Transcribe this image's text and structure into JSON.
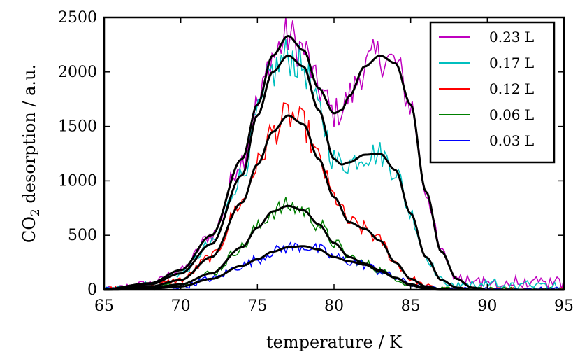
{
  "chart_data": {
    "type": "line",
    "title": "",
    "xlabel": "temperature / K",
    "ylabel_main": "CO",
    "ylabel_sub": "2",
    "ylabel_rest": " desorption / a.u.",
    "xlim": [
      65,
      95
    ],
    "ylim": [
      0,
      2500
    ],
    "x_ticks": [
      "65",
      "70",
      "75",
      "80",
      "85",
      "90",
      "95"
    ],
    "y_ticks": [
      "0",
      "500",
      "1000",
      "1500",
      "2000",
      "2500"
    ],
    "grid": false,
    "legend_position": "top-right",
    "series": [
      {
        "name": "0.23 L",
        "color": "#bf00bf",
        "fit": [
          [
            65,
            5
          ],
          [
            68,
            60
          ],
          [
            70,
            180
          ],
          [
            72,
            500
          ],
          [
            74,
            1200
          ],
          [
            75,
            1700
          ],
          [
            76,
            2150
          ],
          [
            77,
            2330
          ],
          [
            78,
            2200
          ],
          [
            79,
            1850
          ],
          [
            80,
            1620
          ],
          [
            80.5,
            1650
          ],
          [
            81,
            1780
          ],
          [
            82,
            2050
          ],
          [
            83,
            2150
          ],
          [
            84,
            2080
          ],
          [
            85,
            1700
          ],
          [
            86,
            900
          ],
          [
            87,
            350
          ],
          [
            88,
            100
          ],
          [
            89,
            20
          ],
          [
            90,
            0
          ]
        ]
      },
      {
        "name": "0.17 L",
        "color": "#00bfbf",
        "fit": [
          [
            65,
            5
          ],
          [
            68,
            50
          ],
          [
            70,
            150
          ],
          [
            72,
            420
          ],
          [
            74,
            1050
          ],
          [
            75,
            1600
          ],
          [
            76,
            2000
          ],
          [
            77,
            2150
          ],
          [
            78,
            2050
          ],
          [
            79,
            1650
          ],
          [
            80,
            1200
          ],
          [
            80.5,
            1150
          ],
          [
            81,
            1170
          ],
          [
            82,
            1240
          ],
          [
            83,
            1250
          ],
          [
            84,
            1100
          ],
          [
            85,
            700
          ],
          [
            86,
            300
          ],
          [
            87,
            90
          ],
          [
            88,
            20
          ],
          [
            89,
            0
          ]
        ]
      },
      {
        "name": "0.12 L",
        "color": "#ff0000",
        "fit": [
          [
            65,
            5
          ],
          [
            68,
            30
          ],
          [
            70,
            90
          ],
          [
            72,
            300
          ],
          [
            74,
            800
          ],
          [
            75,
            1150
          ],
          [
            76,
            1450
          ],
          [
            77,
            1600
          ],
          [
            78,
            1520
          ],
          [
            79,
            1200
          ],
          [
            80,
            850
          ],
          [
            81,
            620
          ],
          [
            82,
            560
          ],
          [
            83,
            450
          ],
          [
            84,
            250
          ],
          [
            85,
            100
          ],
          [
            86,
            30
          ],
          [
            87,
            5
          ],
          [
            88,
            0
          ]
        ]
      },
      {
        "name": "0.06 L",
        "color": "#008000",
        "fit": [
          [
            65,
            2
          ],
          [
            68,
            15
          ],
          [
            70,
            50
          ],
          [
            72,
            150
          ],
          [
            74,
            390
          ],
          [
            75,
            570
          ],
          [
            76,
            720
          ],
          [
            77,
            770
          ],
          [
            78,
            730
          ],
          [
            79,
            600
          ],
          [
            80,
            430
          ],
          [
            81,
            300
          ],
          [
            82,
            240
          ],
          [
            83,
            180
          ],
          [
            84,
            110
          ],
          [
            85,
            40
          ],
          [
            86,
            10
          ],
          [
            87,
            0
          ]
        ]
      },
      {
        "name": "0.03 L",
        "color": "#0000ff",
        "fit": [
          [
            65,
            0
          ],
          [
            68,
            10
          ],
          [
            70,
            30
          ],
          [
            72,
            100
          ],
          [
            74,
            220
          ],
          [
            75,
            280
          ],
          [
            76,
            350
          ],
          [
            77,
            390
          ],
          [
            78,
            400
          ],
          [
            79,
            370
          ],
          [
            80,
            300
          ],
          [
            81,
            260
          ],
          [
            82,
            230
          ],
          [
            83,
            170
          ],
          [
            84,
            110
          ],
          [
            85,
            50
          ],
          [
            86,
            15
          ],
          [
            87,
            0
          ]
        ]
      }
    ]
  }
}
